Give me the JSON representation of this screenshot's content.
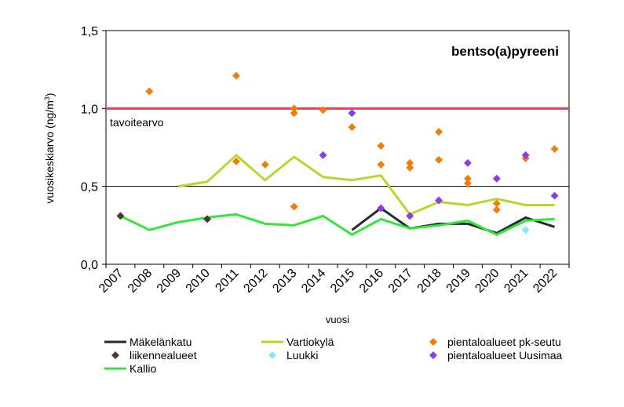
{
  "chart_data": {
    "type": "line",
    "title": "bentso(a)pyreeni",
    "xlabel": "vuosi",
    "ylabel": "vuosikeskiarvo (ng/m³)",
    "ylabel_main": "vuosikeskiarvo (ng/m",
    "ylabel_sup": "3",
    "ylabel_end": ")",
    "ylim": [
      0,
      1.5
    ],
    "yticks": [
      "0,0",
      "0,5",
      "1,0",
      "1,5"
    ],
    "ytick_values": [
      0,
      0.5,
      1.0,
      1.5
    ],
    "categories": [
      "2007",
      "2008",
      "2009",
      "2010",
      "2011",
      "2012",
      "2013",
      "2014",
      "2015",
      "2016",
      "2017",
      "2018",
      "2019",
      "2020",
      "2021",
      "2022"
    ],
    "reference_lines": [
      {
        "label": "tavoitearvo",
        "value": 1.0,
        "color": "#e8415a"
      },
      {
        "label": "",
        "value": 0.5,
        "color": "#000000"
      }
    ],
    "series": [
      {
        "name": "Mäkelänkatu",
        "kind": "line",
        "color": "#262b33",
        "points": [
          [
            8.5,
            0.22
          ],
          [
            9.5,
            0.36
          ],
          [
            10.5,
            0.23
          ],
          [
            11.5,
            0.26
          ],
          [
            12.5,
            0.26
          ],
          [
            13.5,
            0.2
          ],
          [
            14.5,
            0.3
          ],
          [
            15.5,
            0.24
          ]
        ]
      },
      {
        "name": "Vartiokylä",
        "kind": "line",
        "color": "#b5d82e",
        "points": [
          [
            2.5,
            0.5
          ],
          [
            3.5,
            0.53
          ],
          [
            4.5,
            0.7
          ],
          [
            5.5,
            0.54
          ],
          [
            6.5,
            0.69
          ],
          [
            7.5,
            0.56
          ],
          [
            8.5,
            0.54
          ],
          [
            9.5,
            0.57
          ],
          [
            10.5,
            0.32
          ],
          [
            11.5,
            0.4
          ],
          [
            12.5,
            0.38
          ],
          [
            13.5,
            0.42
          ],
          [
            14.5,
            0.38
          ],
          [
            15.5,
            0.38
          ]
        ]
      },
      {
        "name": "pientaloalueet pk-seutu",
        "kind": "marker",
        "color": "#f07f0a",
        "points": [
          [
            1.5,
            1.11
          ],
          [
            4.5,
            1.21
          ],
          [
            4.5,
            0.66
          ],
          [
            5.5,
            0.64
          ],
          [
            6.5,
            1.0
          ],
          [
            6.5,
            0.97
          ],
          [
            6.5,
            0.37
          ],
          [
            7.5,
            0.99
          ],
          [
            8.5,
            0.88
          ],
          [
            9.5,
            0.76
          ],
          [
            9.5,
            0.64
          ],
          [
            10.5,
            0.65
          ],
          [
            10.5,
            0.62
          ],
          [
            11.5,
            0.85
          ],
          [
            11.5,
            0.67
          ],
          [
            12.5,
            0.55
          ],
          [
            12.5,
            0.52
          ],
          [
            13.5,
            0.39
          ],
          [
            13.5,
            0.35
          ],
          [
            14.5,
            0.68
          ],
          [
            15.5,
            0.74
          ]
        ]
      },
      {
        "name": "liikennealueet",
        "kind": "marker",
        "color": "#4a3a34",
        "points": [
          [
            0.5,
            0.31
          ],
          [
            3.5,
            0.29
          ]
        ]
      },
      {
        "name": "Luukki",
        "kind": "marker",
        "color": "#8ee6f4",
        "points": [
          [
            14.5,
            0.22
          ]
        ]
      },
      {
        "name": "pientaloalueet Uusimaa",
        "kind": "marker",
        "color": "#8b3ee6",
        "points": [
          [
            7.5,
            0.7
          ],
          [
            8.5,
            0.97
          ],
          [
            9.5,
            0.36
          ],
          [
            10.5,
            0.31
          ],
          [
            11.5,
            0.41
          ],
          [
            12.5,
            0.65
          ],
          [
            13.5,
            0.55
          ],
          [
            14.5,
            0.7
          ],
          [
            15.5,
            0.44
          ]
        ]
      },
      {
        "name": "Kallio",
        "kind": "line",
        "color": "#33e63a",
        "points": [
          [
            0.5,
            0.31
          ],
          [
            1.5,
            0.22
          ],
          [
            2.5,
            0.27
          ],
          [
            3.5,
            0.3
          ],
          [
            4.5,
            0.32
          ],
          [
            5.5,
            0.26
          ],
          [
            6.5,
            0.25
          ],
          [
            7.5,
            0.31
          ],
          [
            8.5,
            0.19
          ],
          [
            9.5,
            0.29
          ],
          [
            10.5,
            0.23
          ],
          [
            11.5,
            0.25
          ],
          [
            12.5,
            0.28
          ],
          [
            13.5,
            0.19
          ],
          [
            14.5,
            0.28
          ],
          [
            15.5,
            0.29
          ]
        ]
      }
    ],
    "legend_order": [
      "Mäkelänkatu",
      "Vartiokylä",
      "pientaloalueet pk-seutu",
      "liikennealueet",
      "Luukki",
      "pientaloalueet Uusimaa",
      "Kallio"
    ],
    "legend_position": "bottom",
    "grid": false
  }
}
